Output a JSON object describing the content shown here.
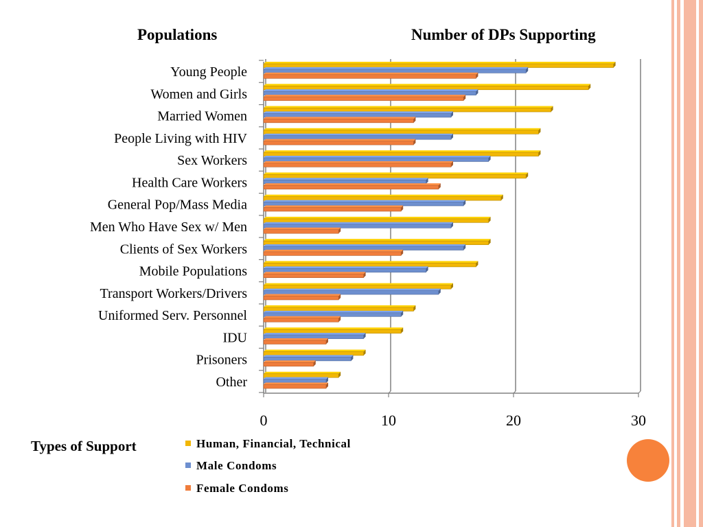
{
  "titles": {
    "left": "Populations",
    "right": "Number of DPs Supporting"
  },
  "legend": {
    "title": "Types of Support",
    "items": [
      {
        "label": "Human, Financial, Technical",
        "color": "#f2b705"
      },
      {
        "label": "Male Condoms",
        "color": "#6d8fcf"
      },
      {
        "label": "Female Condoms",
        "color": "#f07d3c"
      }
    ]
  },
  "colors": {
    "accent_stripe": "#f7b9a1",
    "decor_circle": "#f7823b",
    "axis": "#808080"
  },
  "chart_data": {
    "type": "bar",
    "orientation": "horizontal",
    "categories": [
      "Young People",
      "Women and Girls",
      "Married Women",
      "People Living with HIV",
      "Sex Workers",
      "Health Care Workers",
      "General Pop/Mass Media",
      "Men Who Have Sex w/ Men",
      "Clients of Sex Workers",
      "Mobile Populations",
      "Transport Workers/Drivers",
      "Uniformed Serv. Personnel",
      "IDU",
      "Prisoners",
      "Other"
    ],
    "series": [
      {
        "name": "Human, Financial, Technical",
        "color": "#f2b705",
        "values": [
          28,
          26,
          23,
          22,
          22,
          21,
          19,
          18,
          18,
          17,
          15,
          12,
          11,
          8,
          6
        ]
      },
      {
        "name": "Male Condoms",
        "color": "#6d8fcf",
        "values": [
          21,
          17,
          15,
          15,
          18,
          13,
          16,
          15,
          16,
          13,
          14,
          11,
          8,
          7,
          5
        ]
      },
      {
        "name": "Female Condoms",
        "color": "#f07d3c",
        "values": [
          17,
          16,
          12,
          12,
          15,
          14,
          11,
          6,
          11,
          8,
          6,
          6,
          5,
          4,
          5
        ]
      }
    ],
    "xlim": [
      0,
      30
    ],
    "xticks": [
      0,
      10,
      20,
      30
    ],
    "grid": true,
    "legend_position": "bottom"
  }
}
